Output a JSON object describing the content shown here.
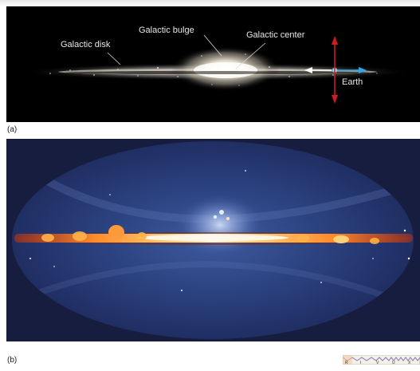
{
  "panel_a": {
    "label_disk": "Galactic disk",
    "label_bulge": "Galactic bulge",
    "label_center": "Galactic center",
    "label_earth": "Earth",
    "caption": "(a)"
  },
  "panel_b": {
    "caption": "(b)"
  },
  "spectrum_icon": {
    "letters": [
      "R",
      "I",
      "V",
      "U",
      "X"
    ]
  },
  "colors": {
    "arrow_vertical": "#d01a22",
    "arrow_left": "#ffffff",
    "arrow_right": "#2fa7e6",
    "sky_background": "#171d3e",
    "galactic_band": "#ffb347"
  }
}
